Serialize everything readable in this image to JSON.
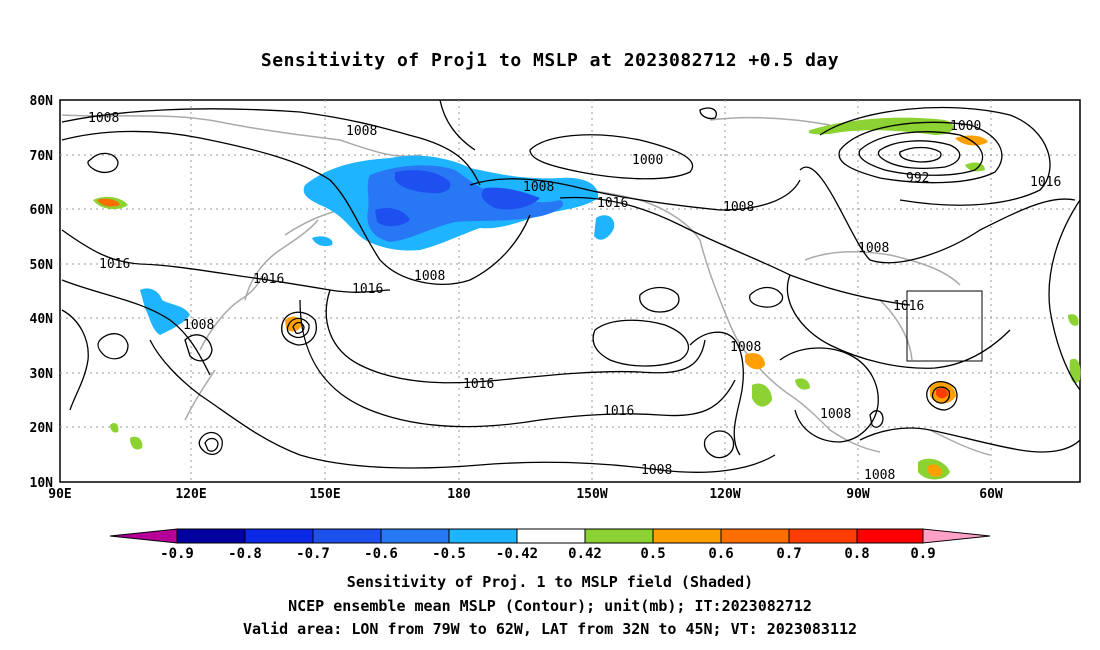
{
  "title": "Sensitivity of Proj1 to MSLP at 2023082712 +0.5 day",
  "lat_labels": [
    "80N",
    "70N",
    "60N",
    "50N",
    "40N",
    "30N",
    "20N",
    "10N"
  ],
  "lon_labels": [
    "90E",
    "120E",
    "150E",
    "180",
    "150W",
    "120W",
    "90W",
    "60W"
  ],
  "contour_labels": [
    "1008",
    "1008",
    "1000",
    "1008",
    "1016",
    "1008",
    "1000",
    "992",
    "1016",
    "1008",
    "1016",
    "1016",
    "1008",
    "1008",
    "1016",
    "1016",
    "1008",
    "1016",
    "1016",
    "1008",
    "1008",
    "1008"
  ],
  "colorbar": {
    "colors": [
      "#b40096",
      "#0000a0",
      "#0a28e6",
      "#1e50f0",
      "#2878f5",
      "#1eb4ff",
      "#ffffff",
      "#8cd232",
      "#ffa000",
      "#ff6e00",
      "#ff3c00",
      "#ff0000",
      "#ffa0c8"
    ],
    "labels": [
      "-0.9",
      "-0.8",
      "-0.7",
      "-0.6",
      "-0.5",
      "-0.42",
      "0.42",
      "0.5",
      "0.6",
      "0.7",
      "0.8",
      "0.9"
    ]
  },
  "caption": {
    "line1": "Sensitivity of Proj. 1 to MSLP field (Shaded)",
    "line2": "NCEP ensemble mean MSLP (Contour); unit(mb); IT:2023082712",
    "line3": "Valid area: LON from 79W to 62W, LAT from 32N to 45N; VT: 2023083112"
  }
}
